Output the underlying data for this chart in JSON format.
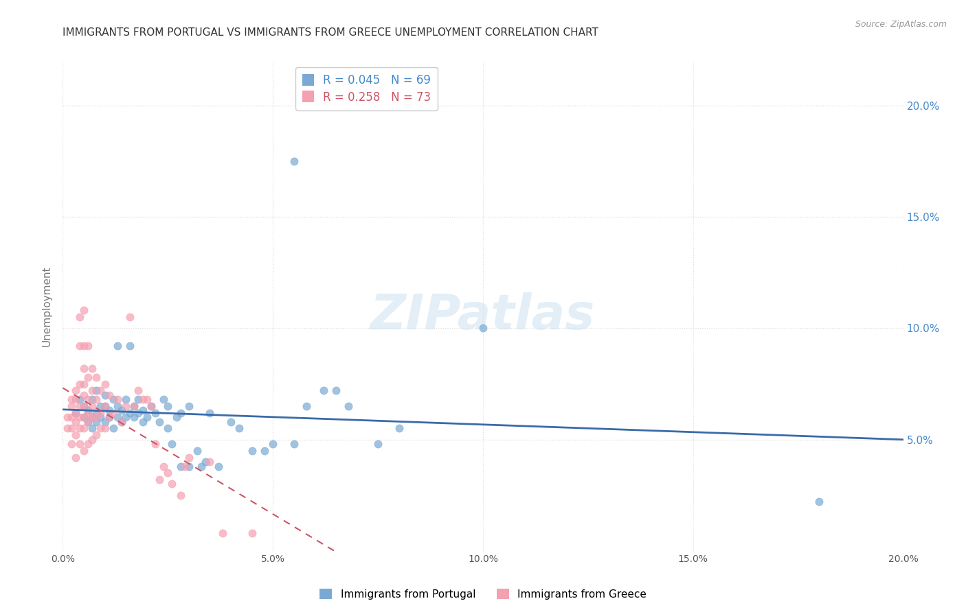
{
  "title": "IMMIGRANTS FROM PORTUGAL VS IMMIGRANTS FROM GREECE UNEMPLOYMENT CORRELATION CHART",
  "source": "Source: ZipAtlas.com",
  "ylabel": "Unemployment",
  "watermark": "ZIPatlas",
  "xlim": [
    0.0,
    0.2
  ],
  "ylim": [
    0.0,
    0.22
  ],
  "x_ticks": [
    0.0,
    0.05,
    0.1,
    0.15,
    0.2
  ],
  "y_ticks": [
    0.05,
    0.1,
    0.15,
    0.2
  ],
  "x_tick_labels": [
    "0.0%",
    "5.0%",
    "10.0%",
    "15.0%",
    "20.0%"
  ],
  "y_tick_labels": [
    "5.0%",
    "10.0%",
    "15.0%",
    "20.0%"
  ],
  "legend_series": [
    {
      "label": "Immigrants from Portugal",
      "color": "#7aaad4",
      "R": "0.045",
      "N": "69"
    },
    {
      "label": "Immigrants from Greece",
      "color": "#f4a0b0",
      "R": "0.258",
      "N": "73"
    }
  ],
  "portugal_color": "#7aaad4",
  "greece_color": "#f4a0b0",
  "trendline_portugal_color": "#3a6baa",
  "trendline_greece_color": "#cc5566",
  "background_color": "#ffffff",
  "grid_color": "#dddddd",
  "title_color": "#333333",
  "right_axis_color": "#4488cc",
  "portugal_scatter": [
    [
      0.003,
      0.062
    ],
    [
      0.004,
      0.068
    ],
    [
      0.005,
      0.06
    ],
    [
      0.005,
      0.065
    ],
    [
      0.006,
      0.058
    ],
    [
      0.006,
      0.063
    ],
    [
      0.007,
      0.055
    ],
    [
      0.007,
      0.06
    ],
    [
      0.007,
      0.068
    ],
    [
      0.008,
      0.058
    ],
    [
      0.008,
      0.062
    ],
    [
      0.008,
      0.072
    ],
    [
      0.009,
      0.06
    ],
    [
      0.009,
      0.065
    ],
    [
      0.01,
      0.058
    ],
    [
      0.01,
      0.065
    ],
    [
      0.01,
      0.07
    ],
    [
      0.011,
      0.06
    ],
    [
      0.011,
      0.063
    ],
    [
      0.012,
      0.055
    ],
    [
      0.012,
      0.068
    ],
    [
      0.013,
      0.06
    ],
    [
      0.013,
      0.065
    ],
    [
      0.013,
      0.092
    ],
    [
      0.014,
      0.058
    ],
    [
      0.014,
      0.063
    ],
    [
      0.015,
      0.06
    ],
    [
      0.015,
      0.068
    ],
    [
      0.016,
      0.062
    ],
    [
      0.016,
      0.092
    ],
    [
      0.017,
      0.06
    ],
    [
      0.017,
      0.065
    ],
    [
      0.018,
      0.062
    ],
    [
      0.018,
      0.068
    ],
    [
      0.019,
      0.058
    ],
    [
      0.019,
      0.063
    ],
    [
      0.02,
      0.06
    ],
    [
      0.021,
      0.065
    ],
    [
      0.022,
      0.062
    ],
    [
      0.023,
      0.058
    ],
    [
      0.024,
      0.068
    ],
    [
      0.025,
      0.055
    ],
    [
      0.025,
      0.065
    ],
    [
      0.026,
      0.048
    ],
    [
      0.027,
      0.06
    ],
    [
      0.028,
      0.038
    ],
    [
      0.028,
      0.062
    ],
    [
      0.03,
      0.038
    ],
    [
      0.03,
      0.065
    ],
    [
      0.032,
      0.045
    ],
    [
      0.033,
      0.038
    ],
    [
      0.034,
      0.04
    ],
    [
      0.035,
      0.062
    ],
    [
      0.037,
      0.038
    ],
    [
      0.04,
      0.058
    ],
    [
      0.042,
      0.055
    ],
    [
      0.045,
      0.045
    ],
    [
      0.048,
      0.045
    ],
    [
      0.05,
      0.048
    ],
    [
      0.055,
      0.048
    ],
    [
      0.055,
      0.175
    ],
    [
      0.058,
      0.065
    ],
    [
      0.062,
      0.072
    ],
    [
      0.065,
      0.072
    ],
    [
      0.068,
      0.065
    ],
    [
      0.075,
      0.048
    ],
    [
      0.08,
      0.055
    ],
    [
      0.1,
      0.1
    ],
    [
      0.18,
      0.022
    ]
  ],
  "greece_scatter": [
    [
      0.001,
      0.055
    ],
    [
      0.001,
      0.06
    ],
    [
      0.002,
      0.048
    ],
    [
      0.002,
      0.055
    ],
    [
      0.002,
      0.06
    ],
    [
      0.002,
      0.065
    ],
    [
      0.002,
      0.068
    ],
    [
      0.003,
      0.042
    ],
    [
      0.003,
      0.052
    ],
    [
      0.003,
      0.058
    ],
    [
      0.003,
      0.062
    ],
    [
      0.003,
      0.068
    ],
    [
      0.003,
      0.072
    ],
    [
      0.004,
      0.048
    ],
    [
      0.004,
      0.055
    ],
    [
      0.004,
      0.06
    ],
    [
      0.004,
      0.065
    ],
    [
      0.004,
      0.075
    ],
    [
      0.004,
      0.092
    ],
    [
      0.004,
      0.105
    ],
    [
      0.005,
      0.045
    ],
    [
      0.005,
      0.055
    ],
    [
      0.005,
      0.06
    ],
    [
      0.005,
      0.065
    ],
    [
      0.005,
      0.07
    ],
    [
      0.005,
      0.075
    ],
    [
      0.005,
      0.082
    ],
    [
      0.005,
      0.092
    ],
    [
      0.005,
      0.108
    ],
    [
      0.006,
      0.048
    ],
    [
      0.006,
      0.058
    ],
    [
      0.006,
      0.062
    ],
    [
      0.006,
      0.068
    ],
    [
      0.006,
      0.078
    ],
    [
      0.006,
      0.092
    ],
    [
      0.007,
      0.05
    ],
    [
      0.007,
      0.06
    ],
    [
      0.007,
      0.065
    ],
    [
      0.007,
      0.072
    ],
    [
      0.007,
      0.082
    ],
    [
      0.008,
      0.052
    ],
    [
      0.008,
      0.06
    ],
    [
      0.008,
      0.068
    ],
    [
      0.008,
      0.078
    ],
    [
      0.009,
      0.055
    ],
    [
      0.009,
      0.062
    ],
    [
      0.009,
      0.072
    ],
    [
      0.01,
      0.055
    ],
    [
      0.01,
      0.065
    ],
    [
      0.01,
      0.075
    ],
    [
      0.011,
      0.06
    ],
    [
      0.011,
      0.07
    ],
    [
      0.012,
      0.062
    ],
    [
      0.013,
      0.068
    ],
    [
      0.014,
      0.058
    ],
    [
      0.015,
      0.065
    ],
    [
      0.016,
      0.105
    ],
    [
      0.017,
      0.065
    ],
    [
      0.018,
      0.072
    ],
    [
      0.019,
      0.068
    ],
    [
      0.02,
      0.068
    ],
    [
      0.021,
      0.065
    ],
    [
      0.022,
      0.048
    ],
    [
      0.023,
      0.032
    ],
    [
      0.024,
      0.038
    ],
    [
      0.025,
      0.035
    ],
    [
      0.026,
      0.03
    ],
    [
      0.028,
      0.025
    ],
    [
      0.029,
      0.038
    ],
    [
      0.03,
      0.042
    ],
    [
      0.035,
      0.04
    ],
    [
      0.038,
      0.008
    ],
    [
      0.045,
      0.008
    ]
  ]
}
